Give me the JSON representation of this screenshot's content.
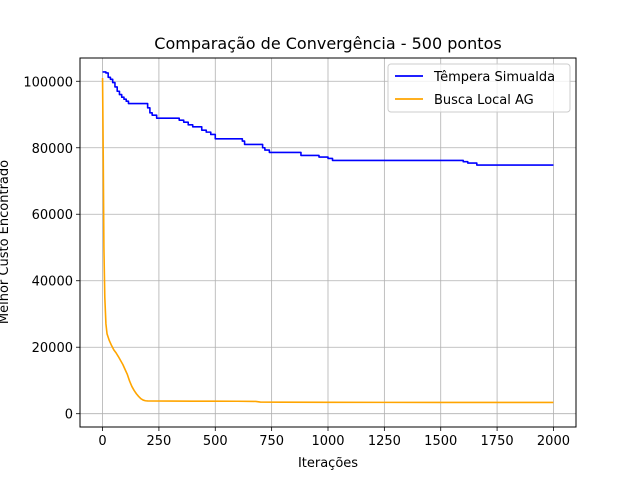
{
  "chart_data": {
    "type": "line",
    "title": "Comparação de Convergência - 500 pontos",
    "xlabel": "Iterações",
    "ylabel": "Melhor Custo Encontrado",
    "xlim": [
      -100,
      2100
    ],
    "ylim": [
      -4000,
      107000
    ],
    "x_ticks": [
      0,
      250,
      500,
      750,
      1000,
      1250,
      1500,
      1750,
      2000
    ],
    "y_ticks": [
      0,
      20000,
      40000,
      60000,
      80000,
      100000
    ],
    "grid": true,
    "legend_position": "top-right",
    "series": [
      {
        "name": "Têmpera Simualda",
        "color": "#0000ff",
        "step": true,
        "points": [
          [
            0,
            102800
          ],
          [
            15,
            102500
          ],
          [
            25,
            101200
          ],
          [
            35,
            100600
          ],
          [
            45,
            99600
          ],
          [
            55,
            98300
          ],
          [
            65,
            97000
          ],
          [
            75,
            96000
          ],
          [
            85,
            95200
          ],
          [
            95,
            94600
          ],
          [
            105,
            94000
          ],
          [
            115,
            93300
          ],
          [
            200,
            92000
          ],
          [
            210,
            90500
          ],
          [
            220,
            89800
          ],
          [
            240,
            88900
          ],
          [
            340,
            88300
          ],
          [
            360,
            87700
          ],
          [
            380,
            86900
          ],
          [
            400,
            86300
          ],
          [
            440,
            85300
          ],
          [
            460,
            84700
          ],
          [
            480,
            84000
          ],
          [
            500,
            82700
          ],
          [
            620,
            82000
          ],
          [
            630,
            81000
          ],
          [
            710,
            80000
          ],
          [
            720,
            79300
          ],
          [
            740,
            78600
          ],
          [
            880,
            77700
          ],
          [
            960,
            77200
          ],
          [
            1000,
            76800
          ],
          [
            1020,
            76200
          ],
          [
            1600,
            75800
          ],
          [
            1620,
            75400
          ],
          [
            1660,
            74800
          ],
          [
            2000,
            74800
          ]
        ]
      },
      {
        "name": "Busca Local AG",
        "color": "#ffa500",
        "step": false,
        "points": [
          [
            0,
            101000
          ],
          [
            3,
            78000
          ],
          [
            6,
            50000
          ],
          [
            10,
            35000
          ],
          [
            15,
            27000
          ],
          [
            20,
            24000
          ],
          [
            30,
            22000
          ],
          [
            40,
            20500
          ],
          [
            50,
            19200
          ],
          [
            60,
            18300
          ],
          [
            70,
            17200
          ],
          [
            80,
            16000
          ],
          [
            90,
            14800
          ],
          [
            100,
            13300
          ],
          [
            110,
            11800
          ],
          [
            120,
            9800
          ],
          [
            130,
            8200
          ],
          [
            140,
            7000
          ],
          [
            150,
            6000
          ],
          [
            160,
            5200
          ],
          [
            170,
            4500
          ],
          [
            180,
            4100
          ],
          [
            190,
            3900
          ],
          [
            200,
            3850
          ],
          [
            300,
            3800
          ],
          [
            400,
            3780
          ],
          [
            500,
            3760
          ],
          [
            600,
            3750
          ],
          [
            680,
            3700
          ],
          [
            700,
            3500
          ],
          [
            800,
            3450
          ],
          [
            1000,
            3420
          ],
          [
            1500,
            3400
          ],
          [
            2000,
            3400
          ]
        ]
      }
    ]
  }
}
